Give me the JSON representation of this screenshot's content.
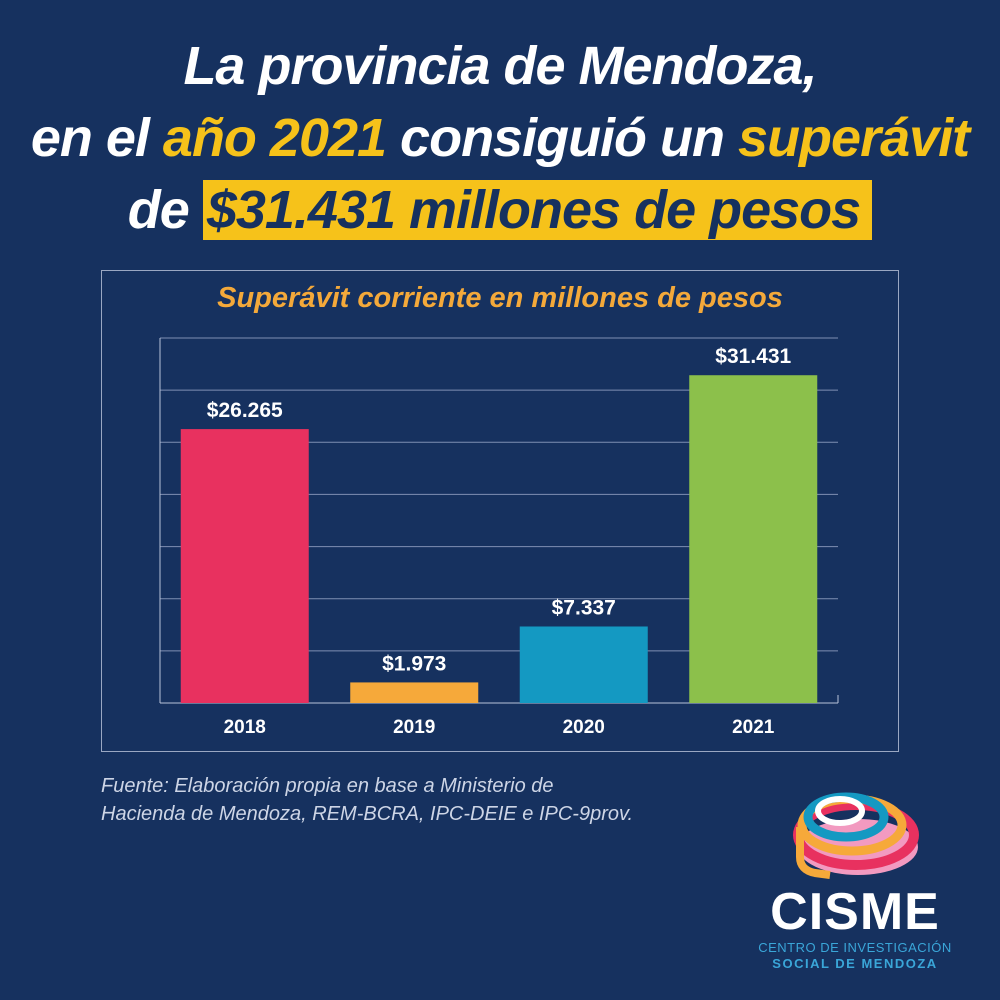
{
  "headline": {
    "line1": "La provincia de Mendoza,",
    "line2_a": "en el ",
    "line2_b": "año 2021",
    "line2_c": " consiguió un ",
    "line2_d": "superávit",
    "line3_a": "de ",
    "line3_b": "$31.431 millones de pesos"
  },
  "chart_data": {
    "type": "bar",
    "title": "Superávit corriente en millones de pesos",
    "categories": [
      "2018",
      "2019",
      "2020",
      "2021"
    ],
    "values": [
      26265,
      1973,
      7337,
      31431
    ],
    "value_labels": [
      "$26.265",
      "$1.973",
      "$7.337",
      "$31.431"
    ],
    "colors": [
      "#e8315f",
      "#f6a93a",
      "#1499c2",
      "#8cc04b"
    ],
    "ylim": [
      0,
      35000
    ],
    "grid": true,
    "legend": "none"
  },
  "source": {
    "line1": "Fuente: Elaboración propia en base a Ministerio de",
    "line2": "Hacienda de Mendoza, REM-BCRA, IPC-DEIE e IPC-9prov."
  },
  "logo": {
    "name": "CISME",
    "sub1": "CENTRO DE INVESTIGACIÓN",
    "sub2": "SOCIAL DE MENDOZA"
  },
  "colors": {
    "background": "#16315f",
    "accent_yellow": "#f6c21a",
    "chart_title": "#f4a93a"
  }
}
